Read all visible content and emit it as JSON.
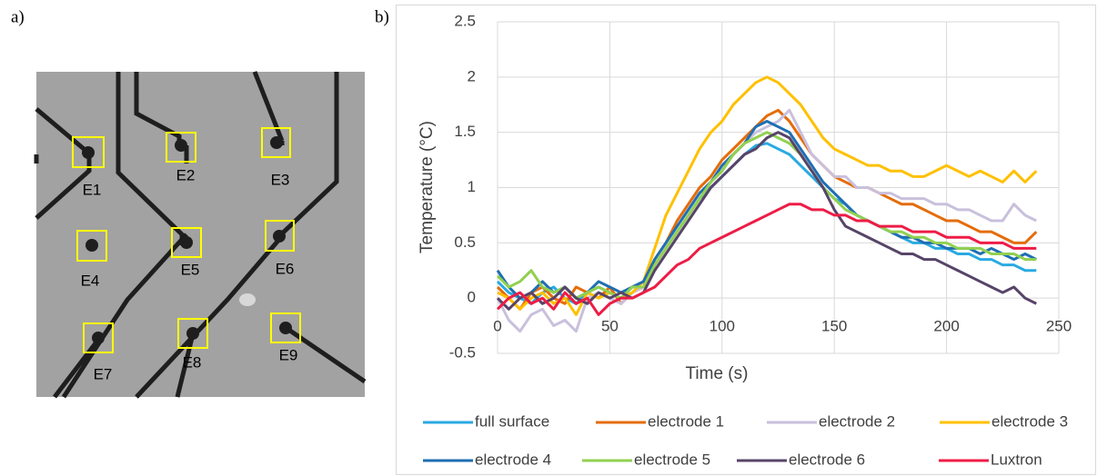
{
  "panel_labels": [
    "a)",
    "b)"
  ],
  "image": {
    "electrode_labels": [
      "E1",
      "E2",
      "E3",
      "E4",
      "E5",
      "E6",
      "E7",
      "E8",
      "E9"
    ]
  },
  "chart_data": {
    "type": "line",
    "x_label": "Time (s)",
    "y_label": "Temperature (°C)",
    "x": [
      0,
      5,
      10,
      15,
      20,
      25,
      30,
      35,
      40,
      45,
      50,
      55,
      60,
      65,
      70,
      75,
      80,
      85,
      90,
      95,
      100,
      105,
      110,
      115,
      120,
      125,
      130,
      135,
      140,
      145,
      150,
      155,
      160,
      165,
      170,
      175,
      180,
      185,
      190,
      195,
      200,
      205,
      210,
      215,
      220,
      225,
      230,
      235,
      240
    ],
    "xlim": [
      0,
      250
    ],
    "xticks": [
      0,
      50,
      100,
      150,
      200,
      250
    ],
    "ylim": [
      -0.5,
      2.5
    ],
    "yticks": [
      -0.5,
      0,
      0.5,
      1,
      1.5,
      2,
      2.5
    ],
    "grid": true,
    "legend": "bottom",
    "series": [
      {
        "name": "full surface",
        "color": "#29aae1",
        "values": [
          0.15,
          0.05,
          0.0,
          -0.05,
          0.05,
          0.1,
          0.0,
          -0.05,
          0.05,
          0.1,
          0.05,
          0.0,
          0.1,
          0.15,
          0.3,
          0.45,
          0.6,
          0.75,
          0.9,
          1.0,
          1.1,
          1.2,
          1.3,
          1.38,
          1.4,
          1.35,
          1.3,
          1.2,
          1.1,
          1.0,
          0.9,
          0.85,
          0.75,
          0.7,
          0.65,
          0.6,
          0.55,
          0.5,
          0.5,
          0.45,
          0.45,
          0.4,
          0.4,
          0.35,
          0.35,
          0.3,
          0.3,
          0.25,
          0.25
        ]
      },
      {
        "name": "electrode 1",
        "color": "#e46c0a",
        "values": [
          0.1,
          0.0,
          -0.1,
          0.05,
          0.1,
          0.0,
          -0.05,
          0.1,
          0.05,
          0.0,
          0.1,
          -0.05,
          0.05,
          0.1,
          0.35,
          0.5,
          0.7,
          0.85,
          1.0,
          1.1,
          1.25,
          1.35,
          1.45,
          1.55,
          1.65,
          1.7,
          1.6,
          1.45,
          1.3,
          1.2,
          1.1,
          1.05,
          1.0,
          1.0,
          0.95,
          0.9,
          0.85,
          0.85,
          0.8,
          0.75,
          0.7,
          0.7,
          0.65,
          0.6,
          0.6,
          0.55,
          0.5,
          0.5,
          0.6
        ]
      },
      {
        "name": "electrode 2",
        "color": "#c9c0dc",
        "values": [
          0.0,
          -0.2,
          -0.3,
          -0.15,
          -0.1,
          -0.25,
          -0.2,
          -0.3,
          0.0,
          0.05,
          0.0,
          -0.05,
          0.05,
          0.1,
          0.3,
          0.45,
          0.6,
          0.75,
          0.9,
          1.05,
          1.15,
          1.3,
          1.4,
          1.5,
          1.55,
          1.6,
          1.7,
          1.5,
          1.3,
          1.2,
          1.1,
          1.1,
          1.0,
          1.0,
          0.95,
          0.95,
          0.9,
          0.9,
          0.9,
          0.85,
          0.85,
          0.8,
          0.8,
          0.75,
          0.7,
          0.7,
          0.85,
          0.75,
          0.7
        ]
      },
      {
        "name": "electrode 3",
        "color": "#ffc000",
        "values": [
          0.05,
          0.0,
          -0.1,
          0.0,
          0.05,
          -0.05,
          0.0,
          -0.15,
          0.05,
          0.0,
          0.05,
          0.0,
          0.05,
          0.15,
          0.45,
          0.75,
          0.95,
          1.15,
          1.35,
          1.5,
          1.6,
          1.75,
          1.85,
          1.95,
          2.0,
          1.95,
          1.85,
          1.75,
          1.6,
          1.45,
          1.35,
          1.3,
          1.25,
          1.2,
          1.2,
          1.15,
          1.15,
          1.1,
          1.1,
          1.15,
          1.2,
          1.15,
          1.1,
          1.15,
          1.1,
          1.05,
          1.15,
          1.05,
          1.15
        ]
      },
      {
        "name": "electrode 4",
        "color": "#1f6eb3",
        "values": [
          0.25,
          0.1,
          0.0,
          0.05,
          0.15,
          0.05,
          0.1,
          0.0,
          0.05,
          0.15,
          0.1,
          0.05,
          0.1,
          0.15,
          0.35,
          0.5,
          0.65,
          0.8,
          0.95,
          1.05,
          1.2,
          1.3,
          1.4,
          1.55,
          1.6,
          1.55,
          1.5,
          1.35,
          1.2,
          1.05,
          0.95,
          0.85,
          0.75,
          0.7,
          0.65,
          0.6,
          0.55,
          0.55,
          0.5,
          0.5,
          0.45,
          0.45,
          0.45,
          0.4,
          0.45,
          0.4,
          0.35,
          0.4,
          0.35
        ]
      },
      {
        "name": "electrode 5",
        "color": "#92d050",
        "values": [
          0.2,
          0.1,
          0.15,
          0.25,
          0.1,
          0.05,
          0.1,
          0.0,
          0.05,
          0.1,
          0.05,
          0.0,
          0.1,
          0.1,
          0.3,
          0.45,
          0.6,
          0.75,
          0.9,
          1.05,
          1.15,
          1.3,
          1.4,
          1.45,
          1.5,
          1.45,
          1.4,
          1.3,
          1.15,
          1.0,
          0.9,
          0.8,
          0.75,
          0.7,
          0.65,
          0.6,
          0.6,
          0.55,
          0.55,
          0.5,
          0.5,
          0.45,
          0.45,
          0.45,
          0.4,
          0.4,
          0.4,
          0.35,
          0.35
        ]
      },
      {
        "name": "electrode 6",
        "color": "#574468",
        "values": [
          0.0,
          -0.1,
          0.0,
          0.05,
          -0.05,
          0.0,
          0.1,
          0.0,
          -0.05,
          0.05,
          0.0,
          0.05,
          0.0,
          0.05,
          0.25,
          0.4,
          0.55,
          0.7,
          0.85,
          1.0,
          1.1,
          1.2,
          1.3,
          1.35,
          1.45,
          1.5,
          1.45,
          1.3,
          1.15,
          1.0,
          0.8,
          0.65,
          0.6,
          0.55,
          0.5,
          0.45,
          0.4,
          0.4,
          0.35,
          0.35,
          0.3,
          0.25,
          0.2,
          0.15,
          0.1,
          0.05,
          0.1,
          0.0,
          -0.05
        ]
      },
      {
        "name": "Luxtron",
        "color": "#ee1c46",
        "values": [
          -0.1,
          0.0,
          0.05,
          -0.05,
          0.0,
          -0.1,
          0.05,
          -0.05,
          0.0,
          -0.15,
          -0.05,
          0.0,
          0.0,
          0.05,
          0.1,
          0.2,
          0.3,
          0.35,
          0.45,
          0.5,
          0.55,
          0.6,
          0.65,
          0.7,
          0.75,
          0.8,
          0.85,
          0.85,
          0.8,
          0.8,
          0.75,
          0.75,
          0.7,
          0.7,
          0.65,
          0.65,
          0.65,
          0.6,
          0.6,
          0.6,
          0.55,
          0.55,
          0.55,
          0.5,
          0.5,
          0.5,
          0.45,
          0.45,
          0.45
        ]
      }
    ]
  }
}
